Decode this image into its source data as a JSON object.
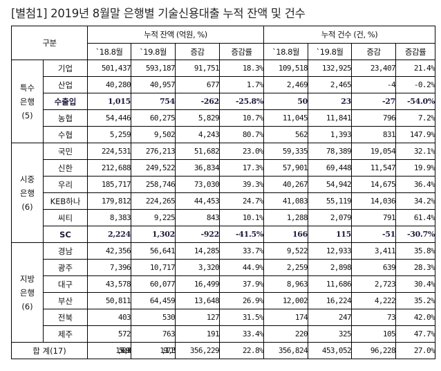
{
  "title": "[별첨1] 2019년 8월말 은행별 기술신용대출 누적 잔액 및 건수",
  "header": {
    "category": "구분",
    "balance_group": "누적 잔액 (억원, %)",
    "count_group": "누적 건수 (건, %)",
    "sub": [
      "`18.8월",
      "`19.8월",
      "증감",
      "증감률",
      "`18.8월",
      "`19.8월",
      "증감",
      "증감률"
    ]
  },
  "groups": [
    {
      "label": [
        "특수",
        "은행",
        "(5)"
      ],
      "rows": [
        {
          "bank": "기업",
          "bold": false,
          "values": [
            "501,437",
            "593,187",
            "91,751",
            "18.3%",
            "109,518",
            "132,925",
            "23,407",
            "21.4%"
          ]
        },
        {
          "bank": "산업",
          "bold": false,
          "values": [
            "40,280",
            "40,957",
            "677",
            "1.7%",
            "2,469",
            "2,465",
            "-4",
            "-0.2%"
          ]
        },
        {
          "bank": "수출입",
          "bold": true,
          "values": [
            "1,015",
            "754",
            "-262",
            "-25.8%",
            "50",
            "23",
            "-27",
            "-54.0%"
          ]
        },
        {
          "bank": "농협",
          "bold": false,
          "values": [
            "54,446",
            "60,275",
            "5,829",
            "10.7%",
            "11,045",
            "11,841",
            "796",
            "7.2%"
          ]
        },
        {
          "bank": "수협",
          "bold": false,
          "values": [
            "5,259",
            "9,502",
            "4,243",
            "80.7%",
            "562",
            "1,393",
            "831",
            "147.9%"
          ]
        }
      ]
    },
    {
      "label": [
        "시중",
        "은행",
        "(6)"
      ],
      "rows": [
        {
          "bank": "국민",
          "bold": false,
          "values": [
            "224,531",
            "276,213",
            "51,682",
            "23.0%",
            "59,335",
            "78,389",
            "19,054",
            "32.1%"
          ]
        },
        {
          "bank": "신한",
          "bold": false,
          "values": [
            "212,688",
            "249,522",
            "36,834",
            "17.3%",
            "57,901",
            "69,448",
            "11,547",
            "19.9%"
          ]
        },
        {
          "bank": "우리",
          "bold": false,
          "values": [
            "185,717",
            "258,746",
            "73,030",
            "39.3%",
            "40,267",
            "54,942",
            "14,675",
            "36.4%"
          ]
        },
        {
          "bank": "KEB하나",
          "bold": false,
          "values": [
            "179,812",
            "224,265",
            "44,453",
            "24.7%",
            "41,083",
            "55,119",
            "14,036",
            "34.2%"
          ]
        },
        {
          "bank": "씨티",
          "bold": false,
          "values": [
            "8,383",
            "9,225",
            "843",
            "10.1%",
            "1,288",
            "2,079",
            "791",
            "61.4%"
          ]
        },
        {
          "bank": "SC",
          "bold": true,
          "values": [
            "2,224",
            "1,302",
            "-922",
            "-41.5%",
            "166",
            "115",
            "-51",
            "-30.7%"
          ]
        }
      ]
    },
    {
      "label": [
        "지방",
        "은행",
        "(6)"
      ],
      "rows": [
        {
          "bank": "경남",
          "bold": false,
          "values": [
            "42,356",
            "56,641",
            "14,285",
            "33.7%",
            "9,522",
            "12,933",
            "3,411",
            "35.8%"
          ]
        },
        {
          "bank": "광주",
          "bold": false,
          "values": [
            "7,396",
            "10,717",
            "3,320",
            "44.9%",
            "2,259",
            "2,898",
            "639",
            "28.3%"
          ]
        },
        {
          "bank": "대구",
          "bold": false,
          "values": [
            "43,578",
            "60,077",
            "16,499",
            "37.9%",
            "8,963",
            "11,686",
            "2,723",
            "30.4%"
          ]
        },
        {
          "bank": "부산",
          "bold": false,
          "values": [
            "50,811",
            "64,459",
            "13,648",
            "26.9%",
            "12,002",
            "16,224",
            "4,222",
            "35.2%"
          ]
        },
        {
          "bank": "전북",
          "bold": false,
          "values": [
            "403",
            "530",
            "127",
            "31.5%",
            "174",
            "247",
            "73",
            "42.0%"
          ]
        },
        {
          "bank": "제주",
          "bold": false,
          "values": [
            "572",
            "763",
            "191",
            "33.4%",
            "220",
            "325",
            "105",
            "47.7%"
          ]
        }
      ]
    }
  ],
  "total": {
    "label": "합 계(17)",
    "values": [
      "1,560,906",
      "1,917,135",
      "356,229",
      "22.8%",
      "356,824",
      "453,052",
      "96,228",
      "27.0%"
    ]
  }
}
